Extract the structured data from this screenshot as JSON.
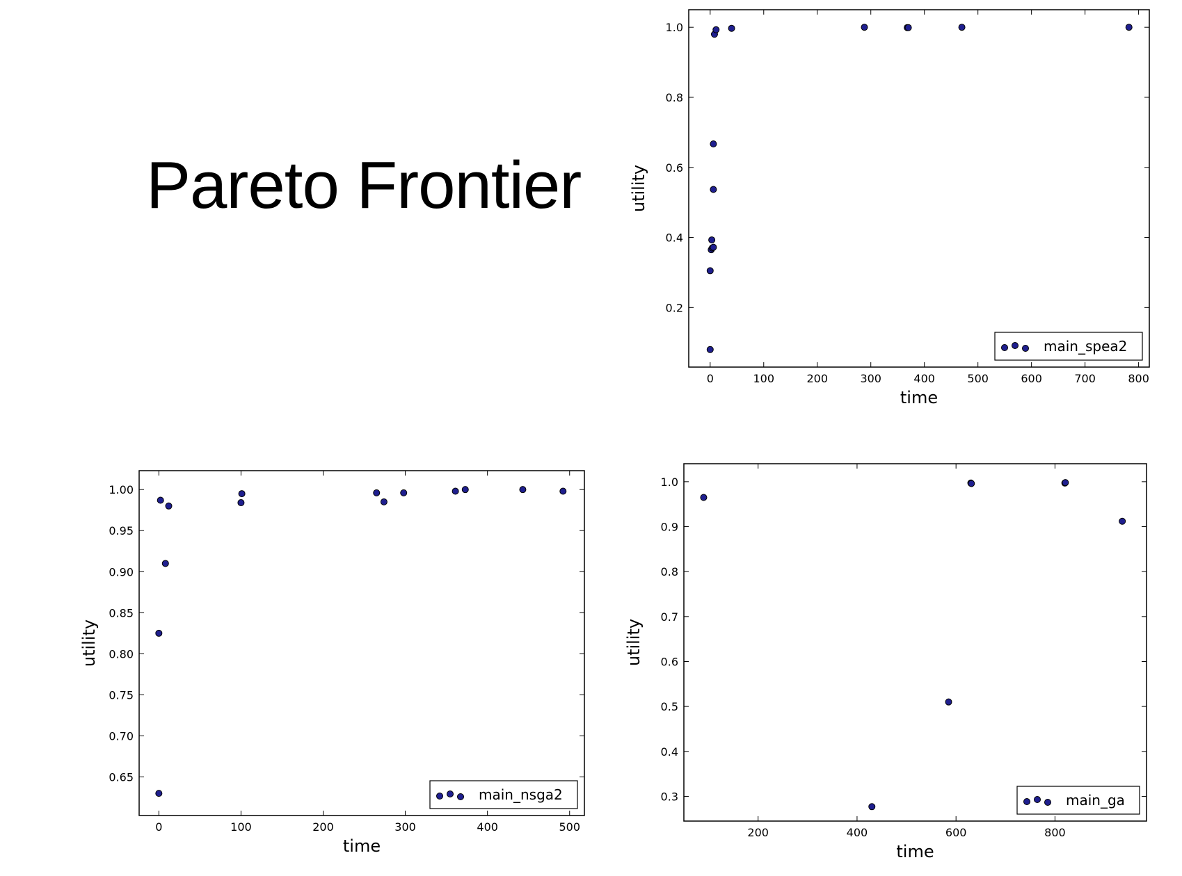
{
  "page_title": "Pareto Frontier",
  "colors": {
    "marker_fill": "#1f1f8f",
    "marker_edge": "#000000",
    "axes": "#000000",
    "background": "#ffffff"
  },
  "chart_data": [
    {
      "id": "spea2",
      "type": "scatter",
      "xlabel": "time",
      "ylabel": "utility",
      "xlim": [
        -40,
        820
      ],
      "ylim": [
        0.03,
        1.05
      ],
      "xticks": [
        0,
        100,
        200,
        300,
        400,
        500,
        600,
        700,
        800
      ],
      "yticks": [
        0.2,
        0.4,
        0.6,
        0.8,
        1.0
      ],
      "ytick_labels": [
        "0.2",
        "0.4",
        "0.6",
        "0.8",
        "1.0"
      ],
      "legend_position": "lower-right",
      "series": [
        {
          "name": "main_spea2",
          "points": [
            [
              0,
              0.08
            ],
            [
              0,
              0.305
            ],
            [
              2,
              0.365
            ],
            [
              4,
              0.37
            ],
            [
              6,
              0.372
            ],
            [
              3,
              0.393
            ],
            [
              6,
              0.537
            ],
            [
              6,
              0.667
            ],
            [
              8,
              0.98
            ],
            [
              11,
              0.993
            ],
            [
              40,
              0.997
            ],
            [
              288,
              1.0
            ],
            [
              368,
              0.999
            ],
            [
              370,
              0.999
            ],
            [
              470,
              1.0
            ],
            [
              782,
              1.0
            ]
          ]
        }
      ]
    },
    {
      "id": "nsga2",
      "type": "scatter",
      "xlabel": "time",
      "ylabel": "utility",
      "xlim": [
        -24,
        518
      ],
      "ylim": [
        0.603,
        1.023
      ],
      "xticks": [
        0,
        100,
        200,
        300,
        400,
        500
      ],
      "yticks": [
        0.65,
        0.7,
        0.75,
        0.8,
        0.85,
        0.9,
        0.95,
        1.0
      ],
      "ytick_labels": [
        "0.65",
        "0.70",
        "0.75",
        "0.80",
        "0.85",
        "0.90",
        "0.95",
        "1.00"
      ],
      "legend_position": "lower-right",
      "series": [
        {
          "name": "main_nsga2",
          "points": [
            [
              0,
              0.63
            ],
            [
              0,
              0.825
            ],
            [
              8,
              0.91
            ],
            [
              2,
              0.987
            ],
            [
              12,
              0.98
            ],
            [
              100,
              0.984
            ],
            [
              101,
              0.995
            ],
            [
              265,
              0.996
            ],
            [
              274,
              0.985
            ],
            [
              298,
              0.996
            ],
            [
              361,
              0.998
            ],
            [
              373,
              1.0
            ],
            [
              443,
              1.0
            ],
            [
              492,
              0.998
            ]
          ]
        }
      ]
    },
    {
      "id": "ga",
      "type": "scatter",
      "xlabel": "time",
      "ylabel": "utility",
      "xlim": [
        50,
        985
      ],
      "ylim": [
        0.245,
        1.04
      ],
      "xticks": [
        200,
        400,
        600,
        800
      ],
      "yticks": [
        0.3,
        0.4,
        0.5,
        0.6,
        0.7,
        0.8,
        0.9,
        1.0
      ],
      "ytick_labels": [
        "0.3",
        "0.4",
        "0.5",
        "0.6",
        "0.7",
        "0.8",
        "0.9",
        "1.0"
      ],
      "legend_position": "lower-right",
      "series": [
        {
          "name": "main_ga",
          "points": [
            [
              90,
              0.965
            ],
            [
              430,
              0.277
            ],
            [
              585,
              0.51
            ],
            [
              630,
              0.997
            ],
            [
              631,
              0.996
            ],
            [
              820,
              0.997
            ],
            [
              821,
              0.998
            ],
            [
              936,
              0.912
            ]
          ]
        }
      ]
    }
  ]
}
